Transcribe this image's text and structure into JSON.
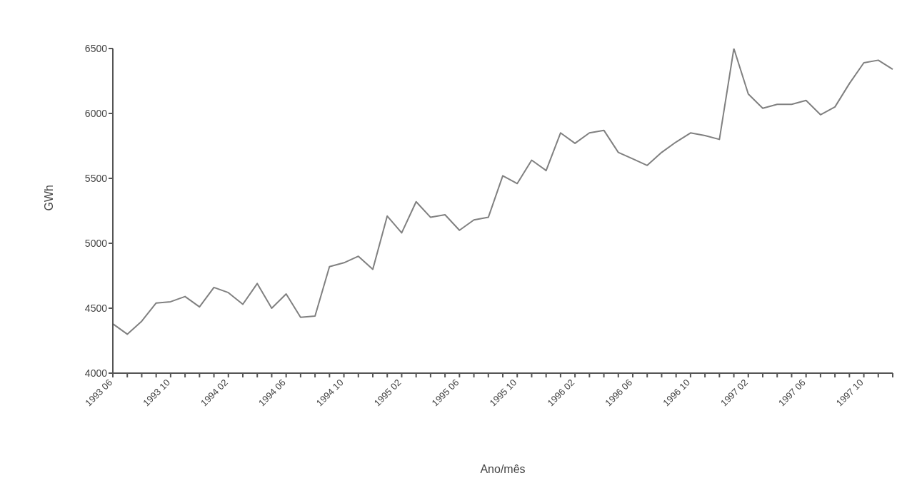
{
  "chart_data": {
    "type": "line",
    "xlabel": "Ano/mês",
    "ylabel": "GWh",
    "categories": [
      "1993 06",
      null,
      null,
      null,
      "1993 10",
      null,
      null,
      null,
      "1994 02",
      null,
      null,
      null,
      "1994 06",
      null,
      null,
      null,
      "1994 10",
      null,
      null,
      null,
      "1995 02",
      null,
      null,
      null,
      "1995 06",
      null,
      null,
      null,
      "1995 10",
      null,
      null,
      null,
      "1996 02",
      null,
      null,
      null,
      "1996 06",
      null,
      null,
      null,
      "1996 10",
      null,
      null,
      null,
      "1997 02",
      null,
      null,
      null,
      "1997 06",
      null,
      null,
      null,
      "1997 10",
      null,
      null
    ],
    "series": [
      {
        "color": "#808080",
        "values": [
          4380,
          4300,
          4400,
          4540,
          4550,
          4590,
          4510,
          4660,
          4620,
          4530,
          4690,
          4500,
          4610,
          4430,
          4440,
          4820,
          4850,
          4900,
          4800,
          5210,
          5080,
          5320,
          5200,
          5220,
          5100,
          5180,
          5200,
          5520,
          5460,
          5640,
          5560,
          5850,
          5770,
          5850,
          5870,
          5700,
          5650,
          5600,
          5700,
          5780,
          5850,
          5830,
          5800,
          6500,
          6150,
          6040,
          6070,
          6070,
          6100,
          5990,
          6050,
          6230,
          6390,
          6410,
          6340
        ]
      }
    ],
    "ylim": [
      4000,
      6500
    ],
    "yticks": [
      4000,
      4500,
      5000,
      5500,
      6000,
      6500
    ],
    "grid": false,
    "legend": false,
    "marker": "none",
    "line_style": "solid"
  }
}
